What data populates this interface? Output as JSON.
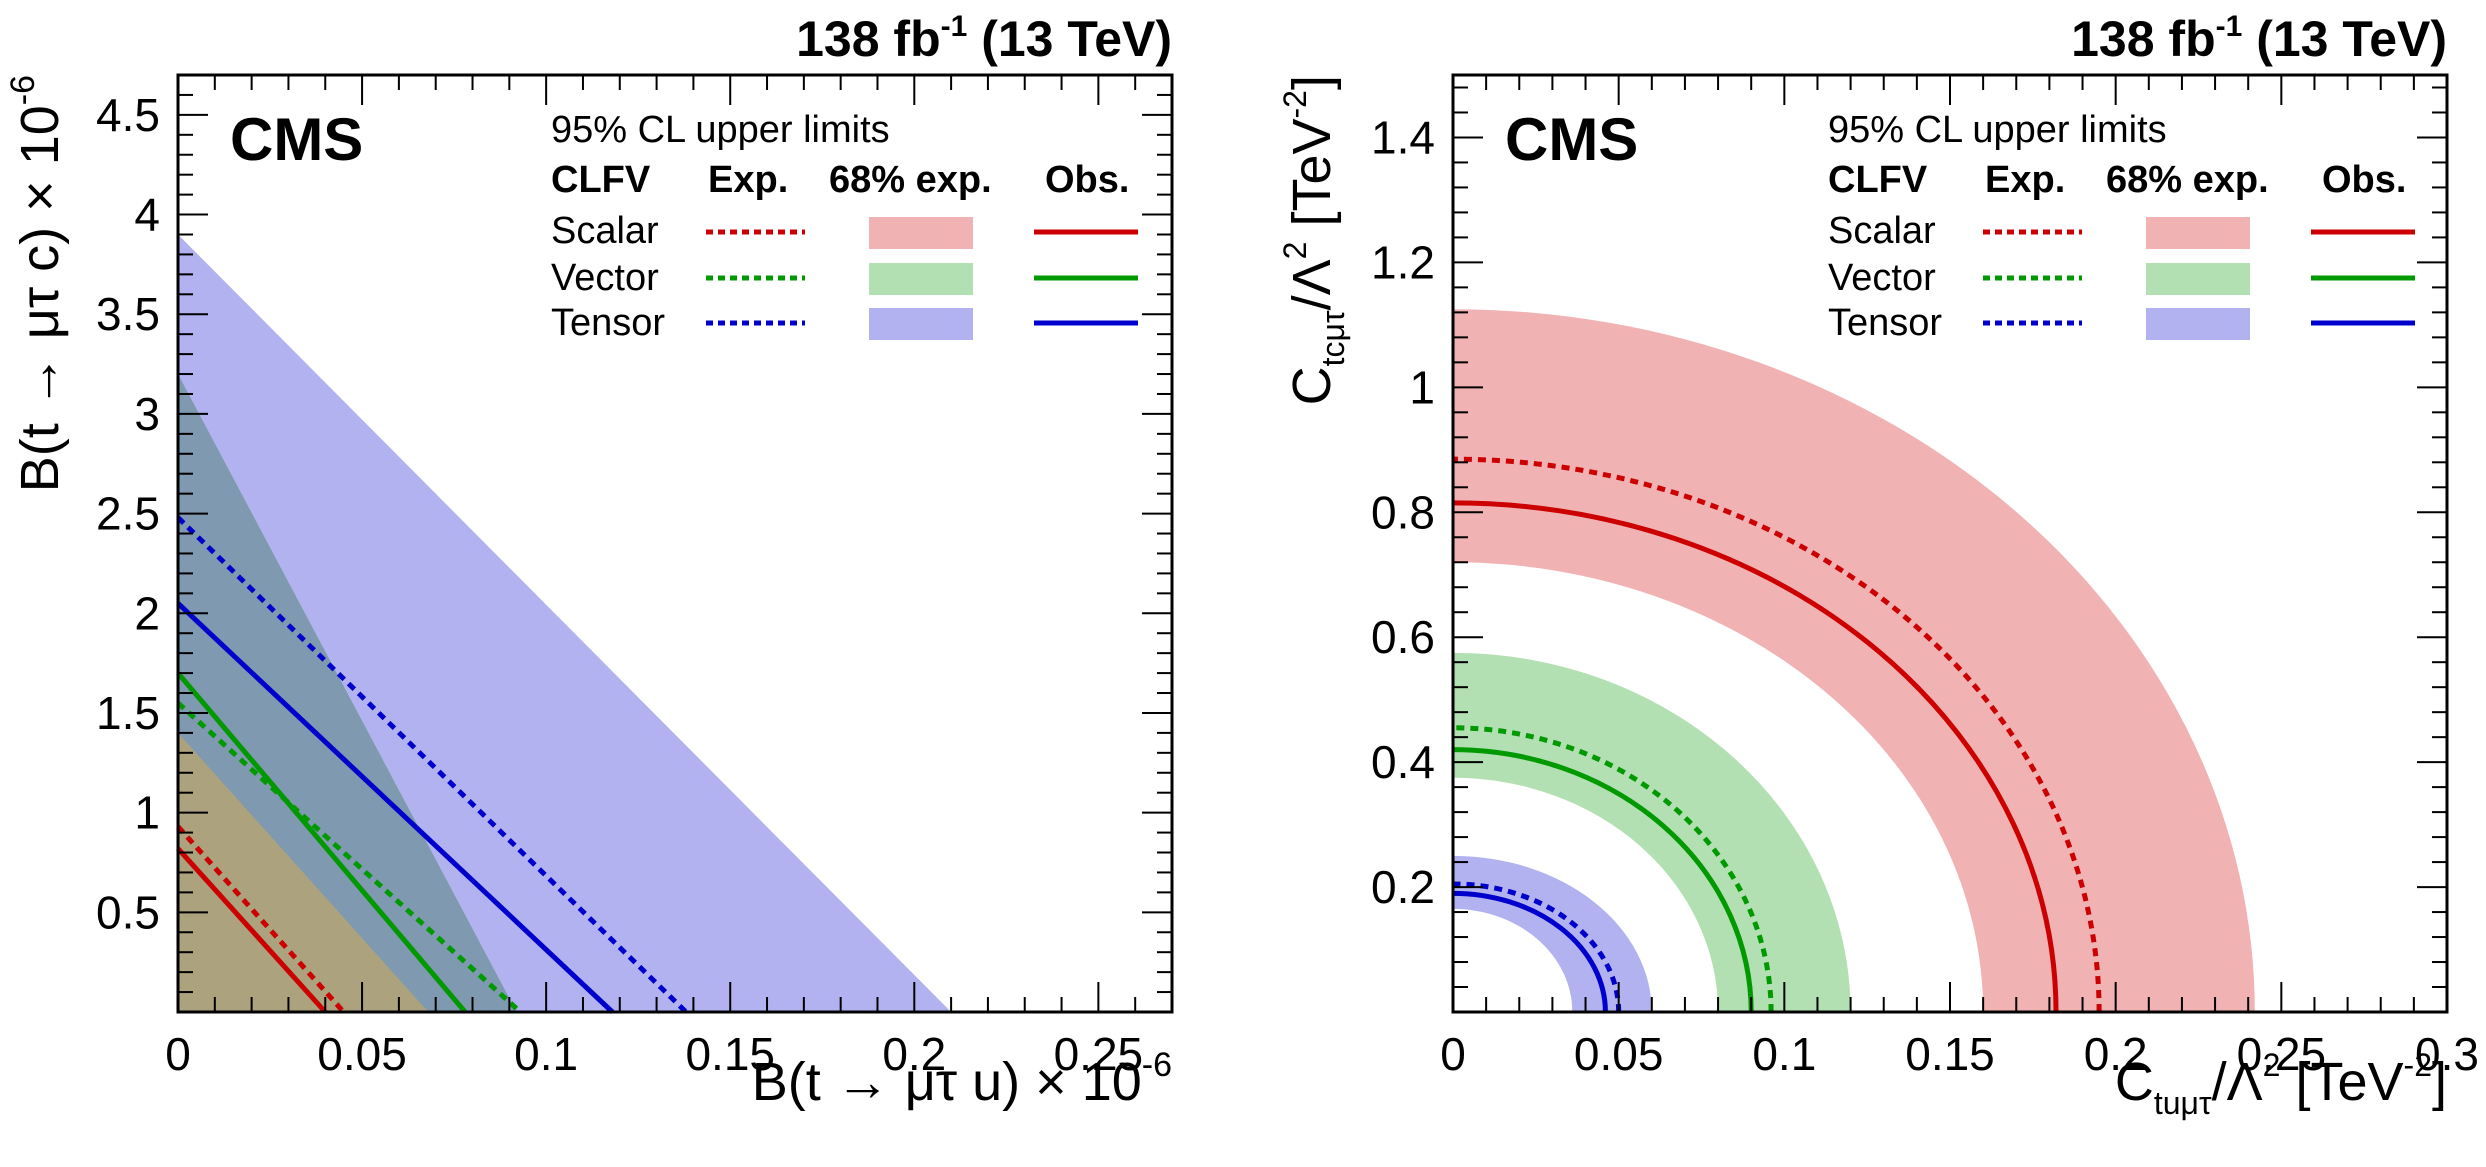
{
  "chart_data": [
    {
      "type": "band-limits",
      "lumi_label": "138 fb",
      "lumi_sup": "-1",
      "energy_label": " (13 TeV)",
      "cms_label": "CMS",
      "xlabel_main": "B(t → μτ u) × 10",
      "xlabel_sup": "-6",
      "ylabel_main": "B(t → μτ c) × 10",
      "ylabel_sup": "-6",
      "xlim": [
        0,
        0.27
      ],
      "ylim": [
        0,
        4.7
      ],
      "xticks": [
        0,
        0.05,
        0.1,
        0.15,
        0.2,
        0.25
      ],
      "xtick_labels": [
        "0",
        "0.05",
        "0.1",
        "0.15",
        "0.2",
        "0.25"
      ],
      "yticks": [
        0.5,
        1,
        1.5,
        2,
        2.5,
        3,
        3.5,
        4,
        4.5
      ],
      "ytick_labels": [
        "0.5",
        "1",
        "1.5",
        "2",
        "2.5",
        "3",
        "3.5",
        "4",
        "4.5"
      ],
      "series": [
        {
          "name": "Tensor",
          "band_low": [
            0.0,
            0.8
          ],
          "band_high": [
            0.21,
            3.9
          ],
          "expected": [
            0.138,
            2.48
          ],
          "observed": [
            0.118,
            2.05
          ]
        },
        {
          "name": "Vector",
          "band_low": [
            0.0,
            1.0
          ],
          "band_high": [
            0.092,
            3.2
          ],
          "expected": [
            0.093,
            1.55
          ],
          "observed": [
            0.078,
            1.7
          ]
        },
        {
          "name": "Scalar",
          "band_low": [
            0.0,
            0.35
          ],
          "band_high": [
            0.068,
            1.4
          ],
          "expected": [
            0.045,
            0.93
          ],
          "observed": [
            0.04,
            0.82
          ]
        }
      ]
    },
    {
      "type": "band-limits",
      "lumi_label": "138 fb",
      "lumi_sup": "-1",
      "energy_label": " (13 TeV)",
      "cms_label": "CMS",
      "xlabel_c": "C",
      "xlabel_sub": "tuμτ",
      "xlabel_mid": "/Λ",
      "xlabel_sq": "2",
      "xlabel_unit": " [TeV",
      "xlabel_unit_sup": "-2",
      "xlabel_close": "]",
      "ylabel_c": "C",
      "ylabel_sub": "tcμτ",
      "ylabel_mid": "/Λ",
      "ylabel_sq": "2",
      "ylabel_unit": " [TeV",
      "ylabel_unit_sup": "-2",
      "ylabel_close": "]",
      "xlim": [
        0,
        0.3
      ],
      "ylim": [
        0,
        1.5
      ],
      "xticks": [
        0,
        0.05,
        0.1,
        0.15,
        0.2,
        0.25,
        0.3
      ],
      "xtick_labels": [
        "0",
        "0.05",
        "0.1",
        "0.15",
        "0.2",
        "0.25",
        "0.3"
      ],
      "yticks": [
        0.2,
        0.4,
        0.6,
        0.8,
        1,
        1.2,
        1.4
      ],
      "ytick_labels": [
        "0.2",
        "0.4",
        "0.6",
        "0.8",
        "1",
        "1.2",
        "1.4"
      ],
      "series": [
        {
          "name": "Scalar",
          "band_low": [
            0.16,
            0.72
          ],
          "band_high": [
            0.242,
            1.125
          ],
          "expected": [
            0.195,
            0.885
          ],
          "observed": [
            0.182,
            0.815
          ]
        },
        {
          "name": "Vector",
          "band_low": [
            0.08,
            0.375
          ],
          "band_high": [
            0.12,
            0.575
          ],
          "expected": [
            0.096,
            0.455
          ],
          "observed": [
            0.09,
            0.42
          ]
        },
        {
          "name": "Tensor",
          "band_low": [
            0.036,
            0.165
          ],
          "band_high": [
            0.06,
            0.25
          ],
          "expected": [
            0.05,
            0.205
          ],
          "observed": [
            0.046,
            0.19
          ]
        }
      ]
    }
  ],
  "legend": {
    "title": "95% CL upper limits",
    "col_clfv": "CLFV",
    "col_exp": "Exp.",
    "col_band": "68% exp.",
    "col_obs": "Obs.",
    "rows": [
      {
        "name": "Scalar",
        "key": "scalar"
      },
      {
        "name": "Vector",
        "key": "vector"
      },
      {
        "name": "Tensor",
        "key": "tensor"
      }
    ]
  },
  "colors": {
    "scalar_band": "#f0b2b3",
    "vector_band": "#b3e0b2",
    "tensor_band": "#b2b2f0",
    "overlap_tensor_vector": "#7e99b0",
    "overlap_vector_scalar": "#aca27e",
    "scalar_line": "#cc0000",
    "vector_line": "#009900",
    "tensor_line": "#0000cc",
    "axis": "#000000"
  }
}
